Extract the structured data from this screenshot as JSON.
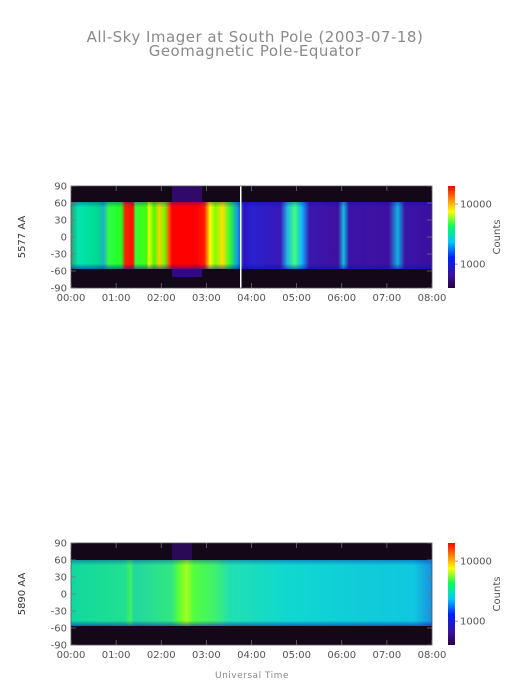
{
  "title_line1": "All-Sky Imager at South Pole (2003-07-18)",
  "title_line2": "Geomagnetic Pole-Equator",
  "xlabel": "Universal Time",
  "chart_data": [
    {
      "type": "heatmap",
      "ylabel": "5577 AA",
      "colorbar_label": "Counts",
      "colorbar_ticks": [
        "10000",
        "1000"
      ],
      "colorbar_range": [
        400,
        20000
      ],
      "colorbar_scale": "log",
      "xticks": [
        "00:00",
        "01:00",
        "02:00",
        "03:00",
        "04:00",
        "05:00",
        "06:00",
        "07:00",
        "08:00"
      ],
      "xlim": [
        0,
        8
      ],
      "yticks": [
        "90",
        "60",
        "30",
        "0",
        "-30",
        "-60",
        "-90"
      ],
      "ylim": [
        -90,
        90
      ],
      "data_lat_range": [
        -55,
        62
      ],
      "colormap": "rainbow",
      "bands": [
        {
          "t": [
            0.0,
            0.6
          ],
          "level": "green"
        },
        {
          "t": [
            0.6,
            0.85
          ],
          "level": "cyan"
        },
        {
          "t": [
            0.85,
            1.2
          ],
          "level": "green"
        },
        {
          "t": [
            1.2,
            1.4
          ],
          "level": "red"
        },
        {
          "t": [
            1.4,
            1.75
          ],
          "level": "green"
        },
        {
          "t": [
            1.75,
            2.2
          ],
          "level": "yellow"
        },
        {
          "t": [
            2.2,
            3.1
          ],
          "level": "red"
        },
        {
          "t": [
            3.1,
            3.6
          ],
          "level": "yellow"
        },
        {
          "t": [
            3.6,
            4.8
          ],
          "level": "purple"
        },
        {
          "t": [
            4.8,
            5.2
          ],
          "level": "cyan"
        },
        {
          "t": [
            5.2,
            8.0
          ],
          "level": "purple"
        }
      ],
      "gap_at": 3.85
    },
    {
      "type": "heatmap",
      "ylabel": "5890 AA",
      "colorbar_label": "Counts",
      "colorbar_ticks": [
        "10000",
        "1000"
      ],
      "colorbar_range": [
        400,
        20000
      ],
      "colorbar_scale": "log",
      "xticks": [
        "00:00",
        "01:00",
        "02:00",
        "03:00",
        "04:00",
        "05:00",
        "06:00",
        "07:00",
        "08:00"
      ],
      "xlim": [
        0,
        8
      ],
      "yticks": [
        "90",
        "60",
        "30",
        "0",
        "-30",
        "-60",
        "-90"
      ],
      "ylim": [
        -90,
        90
      ],
      "data_lat_range": [
        -55,
        62
      ],
      "colormap": "rainbow",
      "bands": [
        {
          "t": [
            0.0,
            1.3
          ],
          "level": "cyan-green"
        },
        {
          "t": [
            1.3,
            1.4
          ],
          "level": "green"
        },
        {
          "t": [
            1.4,
            2.3
          ],
          "level": "cyan-green"
        },
        {
          "t": [
            2.3,
            2.7
          ],
          "level": "yellow-green"
        },
        {
          "t": [
            2.7,
            3.5
          ],
          "level": "green"
        },
        {
          "t": [
            3.5,
            8.0
          ],
          "level": "cyan"
        }
      ]
    }
  ]
}
